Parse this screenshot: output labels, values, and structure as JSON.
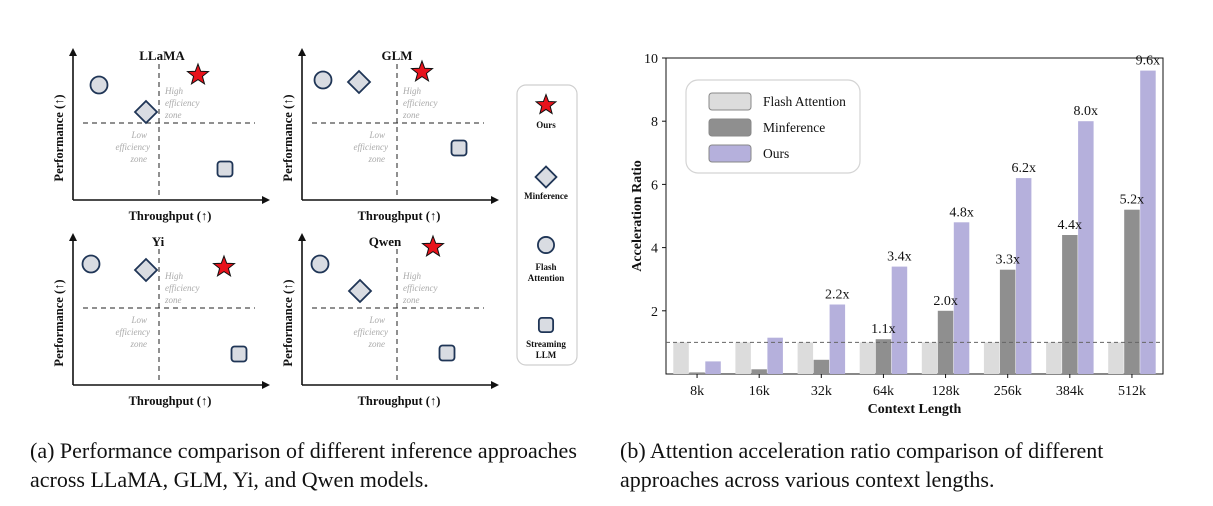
{
  "panel_a": {
    "caption": "(a) Performance comparison of different inference approaches across LLaMA, GLM, Yi, and Qwen models.",
    "quadrant_labels": {
      "high_line1": "High",
      "high_line2": "efficiency",
      "high_line3": "zone",
      "low_line1": "Low",
      "low_line2": "efficiency",
      "low_line3": "zone"
    },
    "panels": [
      {
        "title": "LLaMA",
        "ylabel": "Performance (↑)",
        "xlabel": "Throughput (↑)"
      },
      {
        "title": "GLM",
        "ylabel": "Performance (↑)",
        "xlabel": "Throughput (↑)"
      },
      {
        "title": "Yi",
        "ylabel": "Performance (↑)",
        "xlabel": "Throughput (↑)"
      },
      {
        "title": "Qwen",
        "ylabel": "Performance (↑)",
        "xlabel": "Throughput (↑)"
      }
    ],
    "legend": {
      "items": [
        {
          "label_line1": "Ours",
          "label_line2": "",
          "icon": "red-star-icon"
        },
        {
          "label_line1": "Minference",
          "label_line2": "",
          "icon": "diamond-icon"
        },
        {
          "label_line1": "Flash",
          "label_line2": "Attention",
          "icon": "circle-icon"
        },
        {
          "label_line1": "Streaming",
          "label_line2": "LLM",
          "icon": "rounded-square-icon"
        }
      ]
    },
    "colors": {
      "star": "#e8121b",
      "marker_fill": "#d9dce2",
      "marker_stroke": "#1f3556",
      "zone_text": "#aaaaaa"
    }
  },
  "panel_b": {
    "caption": "(b) Attention acceleration ratio comparison of different approaches across various context lengths."
  },
  "chart_data": {
    "type": "bar",
    "xlabel": "Context Length",
    "ylabel": "Acceleration Ratio",
    "ylim": [
      0,
      10
    ],
    "yticks": [
      2,
      4,
      6,
      8,
      10
    ],
    "categories": [
      "8k",
      "16k",
      "32k",
      "64k",
      "128k",
      "256k",
      "384k",
      "512k"
    ],
    "series": [
      {
        "name": "Flash Attention",
        "color": "#dcdcdc",
        "values": [
          1,
          1,
          1,
          1,
          1,
          1,
          1,
          1
        ]
      },
      {
        "name": "Minference",
        "color": "#8f8f8f",
        "values": [
          0.05,
          0.15,
          0.45,
          1.1,
          2.0,
          3.3,
          4.4,
          5.2
        ]
      },
      {
        "name": "Ours",
        "color": "#b5b0dc",
        "values": [
          0.4,
          1.15,
          2.2,
          3.4,
          4.8,
          6.2,
          8.0,
          9.6
        ]
      }
    ],
    "data_labels": [
      {
        "text": "2.2x",
        "category": "32k",
        "series": "Ours"
      },
      {
        "text": "1.1x",
        "category": "64k",
        "series": "Minference"
      },
      {
        "text": "3.4x",
        "category": "64k",
        "series": "Ours"
      },
      {
        "text": "2.0x",
        "category": "128k",
        "series": "Minference"
      },
      {
        "text": "4.8x",
        "category": "128k",
        "series": "Ours"
      },
      {
        "text": "3.3x",
        "category": "256k",
        "series": "Minference"
      },
      {
        "text": "6.2x",
        "category": "256k",
        "series": "Ours"
      },
      {
        "text": "4.4x",
        "category": "384k",
        "series": "Minference"
      },
      {
        "text": "8.0x",
        "category": "384k",
        "series": "Ours"
      },
      {
        "text": "5.2x",
        "category": "512k",
        "series": "Minference"
      },
      {
        "text": "9.6x",
        "category": "512k",
        "series": "Ours"
      }
    ],
    "reference_line": 1,
    "legend_position": "top-left",
    "grid": false
  }
}
